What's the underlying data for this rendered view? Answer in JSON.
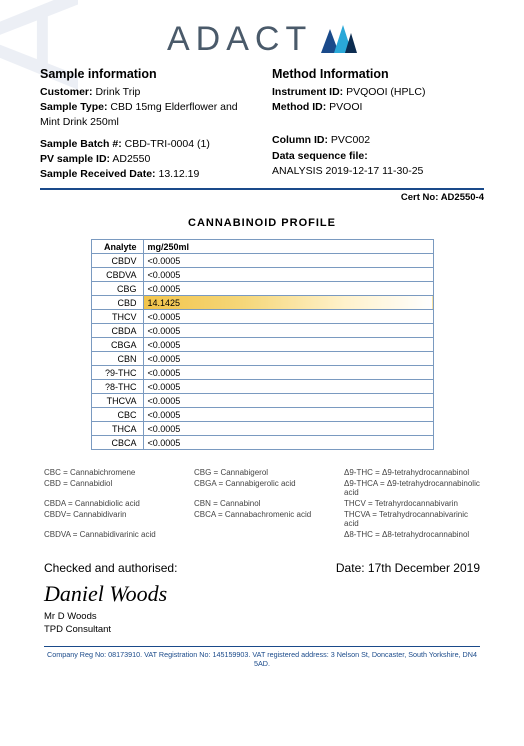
{
  "brand": {
    "name": "ADACT",
    "watermark": "ADACT"
  },
  "sample_info": {
    "title": "Sample information",
    "customer_label": "Customer:",
    "customer": "Drink Trip",
    "type_label": "Sample Type:",
    "type": "CBD 15mg Elderflower and Mint Drink 250ml",
    "batch_label": "Sample Batch #:",
    "batch": "CBD-TRI-0004 (1)",
    "pv_label": "PV sample ID:",
    "pv": "AD2550",
    "recv_label": "Sample Received Date:",
    "recv": "13.12.19"
  },
  "method_info": {
    "title": "Method Information",
    "instrument_label": "Instrument ID:",
    "instrument": "PVQOOI (HPLC)",
    "method_label": "Method ID:",
    "method": "PVOOI",
    "column_label": "Column ID:",
    "column": "PVC002",
    "seq_label": "Data sequence file:",
    "seq": "ANALYSIS 2019-12-17 11-30-25"
  },
  "cert": {
    "label": "Cert No:",
    "value": "AD2550-4"
  },
  "profile": {
    "title": "CANNABINOID PROFILE",
    "col_analyte": "Analyte",
    "col_value": "mg/250ml",
    "rows": [
      {
        "analyte": "CBDV",
        "value": "<0.0005",
        "hl": false
      },
      {
        "analyte": "CBDVA",
        "value": "<0.0005",
        "hl": false
      },
      {
        "analyte": "CBG",
        "value": "<0.0005",
        "hl": false
      },
      {
        "analyte": "CBD",
        "value": "14.1425",
        "hl": true
      },
      {
        "analyte": "THCV",
        "value": "<0.0005",
        "hl": false
      },
      {
        "analyte": "CBDA",
        "value": "<0.0005",
        "hl": false
      },
      {
        "analyte": "CBGA",
        "value": "<0.0005",
        "hl": false
      },
      {
        "analyte": "CBN",
        "value": "<0.0005",
        "hl": false
      },
      {
        "analyte": "?9-THC",
        "value": "<0.0005",
        "hl": false
      },
      {
        "analyte": "?8-THC",
        "value": "<0.0005",
        "hl": false
      },
      {
        "analyte": "THCVA",
        "value": "<0.0005",
        "hl": false
      },
      {
        "analyte": "CBC",
        "value": "<0.0005",
        "hl": false
      },
      {
        "analyte": "THCA",
        "value": "<0.0005",
        "hl": false
      },
      {
        "analyte": "CBCA",
        "value": "<0.0005",
        "hl": false
      }
    ]
  },
  "legend": [
    "CBC = Cannabichromene",
    "CBG = Cannabigerol",
    "Δ9-THC = Δ9-tetrahydrocannabinol",
    "CBD = Cannabidiol",
    "CBGA = Cannabigerolic acid",
    "Δ9-THCA = Δ9-tetrahydrocannabinolic acid",
    "CBDA = Cannabidiolic acid",
    "CBN = Cannabinol",
    "THCV = Tetrahyrdocannabivarin",
    "CBDV= Cannabidivarin",
    "CBCA = Cannabachromenic acid",
    "THCVA = Tetrahydrocannabivarinic acid",
    "CBDVA = Cannabidivarinic acid",
    "",
    "Δ8-THC = Δ8-tetrahydrocannabinol"
  ],
  "signoff": {
    "checked_label": "Checked and authorised:",
    "date_label": "Date:",
    "date": "17th December 2019",
    "signature": "Daniel Woods",
    "name": "Mr D Woods",
    "role": "TPD Consultant"
  },
  "footer": "Company Reg No: 08173910. VAT Registration No: 145159903. VAT registered address: 3 Nelson St, Doncaster, South Yorkshire, DN4 5AD."
}
